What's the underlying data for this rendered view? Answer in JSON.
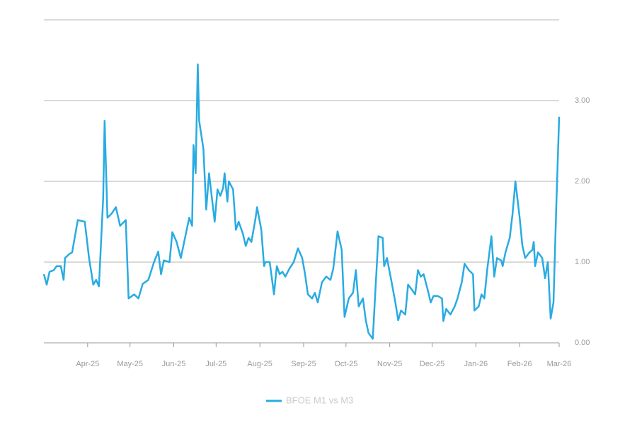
{
  "chart_data": {
    "type": "line",
    "x": [
      0,
      2,
      4,
      7,
      9,
      12,
      14,
      15,
      18,
      20,
      24,
      29,
      32,
      35,
      37,
      39,
      42,
      43,
      45,
      48,
      51,
      54,
      58,
      60,
      64,
      67,
      70,
      74,
      78,
      81,
      83,
      85,
      89,
      91,
      94,
      97,
      99,
      103,
      105,
      106,
      107.5,
      108,
      109,
      110,
      113,
      115,
      117,
      119,
      121,
      123,
      125,
      127,
      128,
      130,
      131,
      134,
      136,
      138,
      141,
      143,
      145,
      147,
      150,
      151,
      154,
      156,
      157,
      160,
      163,
      165,
      167,
      169,
      171,
      174,
      177,
      180,
      183,
      185,
      187,
      190,
      192,
      194,
      197,
      200,
      203,
      205,
      208,
      211,
      213,
      216,
      219,
      221,
      223,
      226,
      228,
      230,
      233,
      235,
      237,
      240,
      241,
      243,
      246,
      249,
      251,
      253,
      256,
      258,
      261,
      263,
      265,
      267,
      269,
      272,
      274,
      276,
      279,
      282,
      283,
      285,
      288,
      291,
      293,
      296,
      298,
      301,
      304,
      305,
      308,
      310,
      312,
      314,
      317,
      319,
      321,
      324,
      325,
      327,
      330,
      332,
      334,
      337,
      339,
      341,
      344,
      346,
      347,
      348,
      350,
      353,
      355,
      357,
      359,
      361,
      363,
      365
    ],
    "series": [
      {
        "name": "BFOE M1 vs M3",
        "color": "#29abe2",
        "values": [
          0.85,
          0.72,
          0.88,
          0.9,
          0.95,
          0.95,
          0.78,
          1.05,
          1.1,
          1.12,
          1.52,
          1.5,
          1.05,
          0.72,
          0.78,
          0.7,
          1.8,
          2.75,
          1.55,
          1.6,
          1.68,
          1.45,
          1.52,
          0.55,
          0.6,
          0.55,
          0.73,
          0.78,
          1.0,
          1.13,
          0.85,
          1.02,
          1.0,
          1.37,
          1.25,
          1.05,
          1.22,
          1.55,
          1.45,
          2.45,
          2.1,
          2.55,
          3.45,
          2.75,
          2.4,
          1.65,
          2.1,
          1.8,
          1.5,
          1.9,
          1.82,
          1.92,
          2.1,
          1.75,
          2.0,
          1.9,
          1.4,
          1.5,
          1.35,
          1.2,
          1.3,
          1.25,
          1.55,
          1.68,
          1.4,
          0.95,
          1.0,
          1.0,
          0.6,
          0.95,
          0.85,
          0.88,
          0.82,
          0.92,
          1.0,
          1.17,
          1.05,
          0.85,
          0.6,
          0.55,
          0.62,
          0.5,
          0.75,
          0.82,
          0.78,
          0.92,
          1.38,
          1.15,
          0.32,
          0.55,
          0.62,
          0.9,
          0.45,
          0.55,
          0.28,
          0.12,
          0.05,
          0.7,
          1.32,
          1.3,
          0.95,
          1.05,
          0.78,
          0.5,
          0.28,
          0.4,
          0.35,
          0.72,
          0.65,
          0.6,
          0.9,
          0.82,
          0.85,
          0.65,
          0.5,
          0.58,
          0.58,
          0.55,
          0.27,
          0.42,
          0.35,
          0.45,
          0.55,
          0.75,
          0.98,
          0.9,
          0.85,
          0.4,
          0.45,
          0.6,
          0.55,
          0.9,
          1.32,
          0.82,
          1.05,
          1.02,
          0.95,
          1.12,
          1.3,
          1.6,
          2.0,
          1.55,
          1.2,
          1.05,
          1.12,
          1.15,
          1.25,
          0.95,
          1.12,
          1.05,
          0.8,
          1.0,
          0.3,
          0.5,
          1.7,
          2.8
        ]
      }
    ],
    "xlim": [
      0,
      365
    ],
    "xticks": [
      {
        "value": 31,
        "label": "Apr-25"
      },
      {
        "value": 61,
        "label": "May-25"
      },
      {
        "value": 92,
        "label": "Jun-25"
      },
      {
        "value": 122,
        "label": "Jul-25"
      },
      {
        "value": 153,
        "label": "Aug-25"
      },
      {
        "value": 184,
        "label": "Sep-25"
      },
      {
        "value": 214,
        "label": "Oct-25"
      },
      {
        "value": 245,
        "label": "Nov-25"
      },
      {
        "value": 275,
        "label": "Dec-25"
      },
      {
        "value": 306,
        "label": "Jan-26"
      },
      {
        "value": 337,
        "label": "Feb-26"
      },
      {
        "value": 365,
        "label": "Mar-26"
      }
    ],
    "ylim": [
      0,
      4
    ],
    "yticks": [
      {
        "value": 0,
        "label": "0.00"
      },
      {
        "value": 1,
        "label": "1.00"
      },
      {
        "value": 2,
        "label": "2.00"
      },
      {
        "value": 3,
        "label": "3.00"
      }
    ],
    "grid": true
  }
}
